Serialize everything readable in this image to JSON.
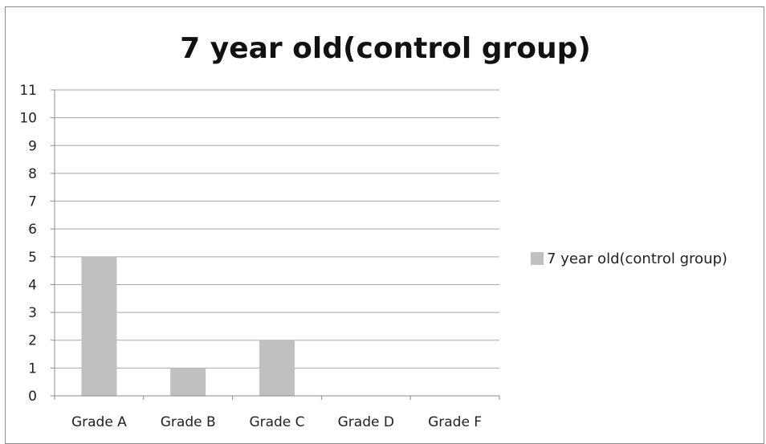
{
  "chart_data": {
    "type": "bar",
    "title": "7 year old(control group)",
    "categories": [
      "Grade A",
      "Grade B",
      "Grade C",
      "Grade D",
      "Grade F"
    ],
    "series": [
      {
        "name": "7 year old(control group)",
        "values": [
          5,
          1,
          2,
          0,
          0
        ],
        "color": "#c0c0c0"
      }
    ],
    "ylim": [
      0,
      11
    ],
    "yticks": [
      "0",
      "1",
      "2",
      "3",
      "4",
      "5",
      "6",
      "7",
      "8",
      "9",
      "10",
      "11"
    ],
    "xlabel": "",
    "ylabel": "",
    "grid": true,
    "legend_position": "right",
    "gridline_color": "#a8a8a8"
  }
}
